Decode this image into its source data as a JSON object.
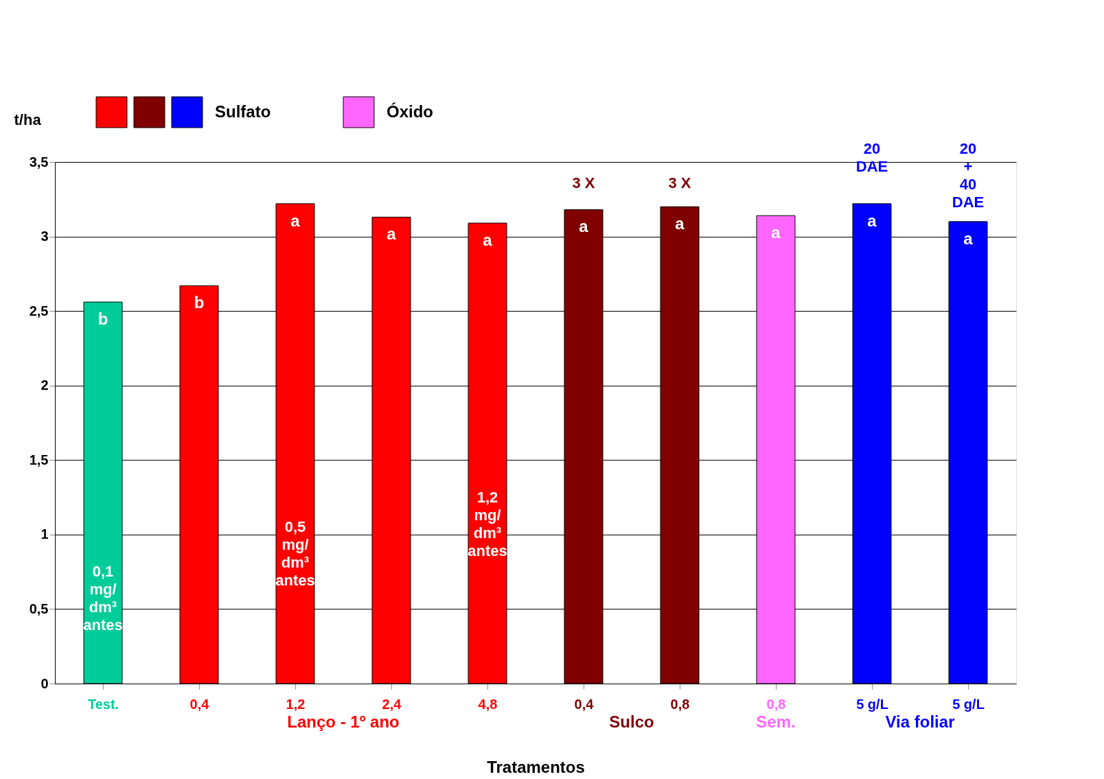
{
  "chart_data": {
    "type": "bar",
    "xlabel": "Tratamentos",
    "ylabel": "t/ha",
    "categories": [
      "Test.",
      "0,4",
      "1,2",
      "2,4",
      "4,8",
      "0,4",
      "0,8",
      "0,8",
      "5 g/L",
      "5 g/L"
    ],
    "values": [
      2.56,
      2.67,
      3.22,
      3.13,
      3.09,
      3.18,
      3.2,
      3.14,
      3.22,
      3.1
    ],
    "colors": [
      "#00cc99",
      "#ff0000",
      "#ff0000",
      "#ff0000",
      "#ff0000",
      "#800000",
      "#800000",
      "#ff66ff",
      "#0000ff",
      "#0000ff"
    ],
    "value_labels": [
      "b",
      "b",
      "a",
      "a",
      "a",
      "a",
      "a",
      "a",
      "a",
      "a"
    ],
    "ylim": [
      0,
      3.5
    ],
    "yticks": [
      {
        "value": 0,
        "label": "0"
      },
      {
        "value": 0.5,
        "label": "0,5"
      },
      {
        "value": 1,
        "label": "1"
      },
      {
        "value": 1.5,
        "label": "1,5"
      },
      {
        "value": 2,
        "label": "2"
      },
      {
        "value": 2.5,
        "label": "2,5"
      },
      {
        "value": 3,
        "label": "3"
      },
      {
        "value": 3.5,
        "label": "3,5"
      }
    ],
    "grid": "y",
    "annotations": [
      "Sulfato",
      "Óxido",
      "Lanço - 1º ano",
      "Sulco",
      "Sem.",
      "Via foliar",
      "0,1\nmg/\ndm³\nantes",
      "0,5\nmg/\ndm³\nantes",
      "1,2\nmg/\ndm³\nantes",
      "3 X",
      "3 X",
      "20\nDAE",
      "20\n+\n40\nDAE"
    ]
  }
}
